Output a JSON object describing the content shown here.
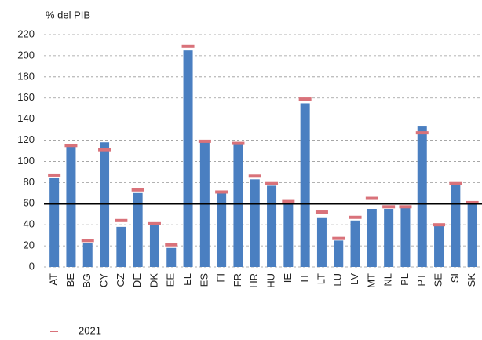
{
  "chart_data": {
    "type": "bar",
    "ylabel": "% del PIB",
    "categories": [
      "AT",
      "BE",
      "BG",
      "CY",
      "CZ",
      "DE",
      "DK",
      "EE",
      "EL",
      "ES",
      "FI",
      "FR",
      "HR",
      "HU",
      "IE",
      "IT",
      "LT",
      "LU",
      "LV",
      "MT",
      "NL",
      "PL",
      "PT",
      "SE",
      "SI",
      "SK"
    ],
    "values": [
      84,
      114,
      23,
      118,
      38,
      70,
      40,
      18,
      205,
      118,
      70,
      116,
      83,
      77,
      60,
      155,
      47,
      25,
      44,
      55,
      55,
      57,
      133,
      39,
      78,
      60
    ],
    "color": "#4a7fc1",
    "markers": {
      "name": "2021",
      "color": "#d9727a",
      "values": [
        87,
        115,
        25,
        111,
        44,
        73,
        41,
        21,
        209,
        119,
        71,
        117,
        86,
        79,
        62,
        159,
        52,
        27,
        47,
        65,
        57,
        57,
        127,
        40,
        79,
        61
      ]
    },
    "reference_line": 60,
    "ylim": [
      0,
      220
    ],
    "yticks": [
      0,
      20,
      40,
      60,
      80,
      100,
      120,
      140,
      160,
      180,
      200,
      220
    ],
    "grid": true
  }
}
